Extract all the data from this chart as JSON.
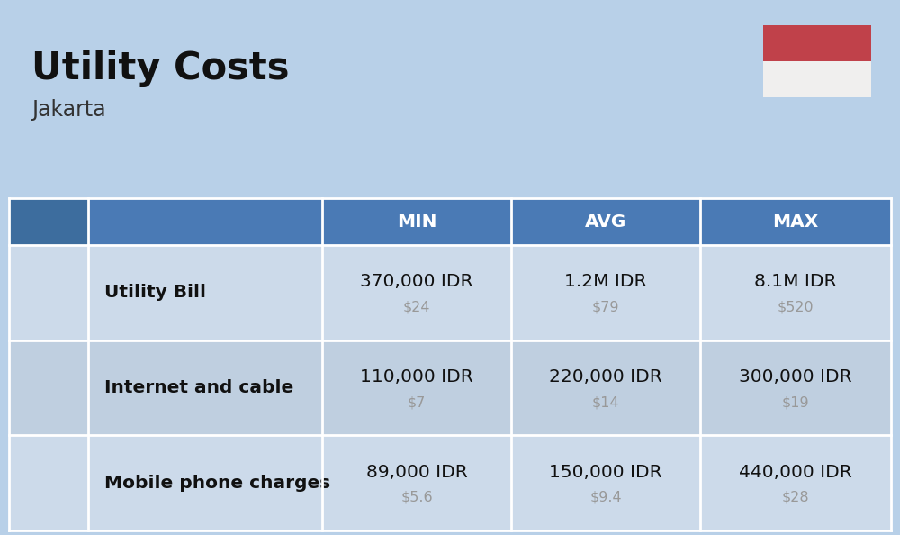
{
  "title": "Utility Costs",
  "subtitle": "Jakarta",
  "background_color": "#b8d0e8",
  "header_bg_color": "#4a7ab5",
  "header_text_color": "#ffffff",
  "row_bg_color_1": "#ccdaea",
  "row_bg_color_2": "#bfcfe0",
  "table_line_color": "#ffffff",
  "rows": [
    {
      "label": "Utility Bill",
      "min_idr": "370,000 IDR",
      "min_usd": "$24",
      "avg_idr": "1.2M IDR",
      "avg_usd": "$79",
      "max_idr": "8.1M IDR",
      "max_usd": "$520"
    },
    {
      "label": "Internet and cable",
      "min_idr": "110,000 IDR",
      "min_usd": "$7",
      "avg_idr": "220,000 IDR",
      "avg_usd": "$14",
      "max_idr": "300,000 IDR",
      "max_usd": "$19"
    },
    {
      "label": "Mobile phone charges",
      "min_idr": "89,000 IDR",
      "min_usd": "$5.6",
      "avg_idr": "150,000 IDR",
      "avg_usd": "$9.4",
      "max_idr": "440,000 IDR",
      "max_usd": "$28"
    }
  ],
  "flag_red": "#c0414a",
  "flag_white": "#f0efee",
  "idr_fontsize": 14.5,
  "usd_fontsize": 11.5,
  "usd_color": "#999999",
  "label_fontsize": 14.5,
  "header_fontsize": 14.5
}
